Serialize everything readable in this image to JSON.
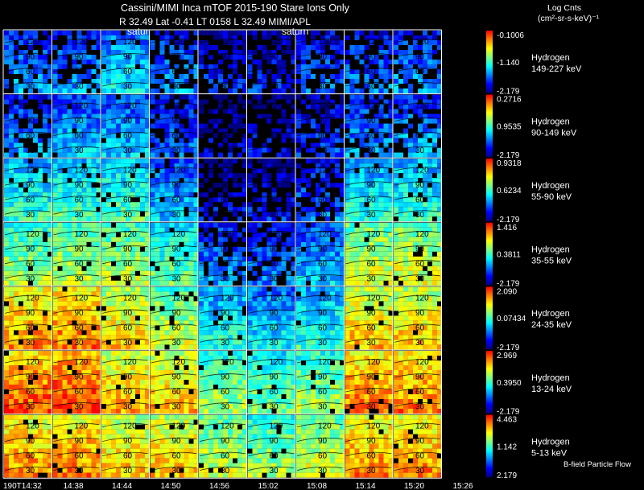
{
  "header": {
    "title": "Cassini/MIMI Inca mTOF  2015-190   Stare   Ions Only",
    "subtitle": "R        32.49 Lat -0.41 LT 0158 L        32.49  MIMI/APL",
    "planet_label": "satur",
    "planet_label_2": "saturn"
  },
  "colorbar": {
    "title": "Log Cnts",
    "units": "(cm²-sr-s-keV)⁻¹",
    "colors": [
      "#000080",
      "#0000ff",
      "#0080ff",
      "#00ffff",
      "#80ff80",
      "#ffff00",
      "#ff8000",
      "#ff0000"
    ]
  },
  "footer": {
    "note": "B-field Particle Flow"
  },
  "chart_data": {
    "type": "heatmap",
    "time_labels": [
      "190T14:32",
      "14:38",
      "14:44",
      "14:50",
      "14:56",
      "15:02",
      "15:08",
      "15:14",
      "15:20",
      "15:26"
    ],
    "elevation_ticks": [
      "30",
      "60",
      "90",
      "120"
    ],
    "rows": [
      {
        "species": "Hydrogen",
        "energy": "149-227 keV",
        "max": "-0.1006",
        "mid": "-1.140",
        "min": "-2.179",
        "intensity": [
          0.25,
          0.25,
          0.35,
          0.25,
          0.12,
          0.12,
          0.2,
          0.22,
          0.25
        ]
      },
      {
        "species": "Hydrogen",
        "energy": "90-149 keV",
        "max": "0.2716",
        "mid": "0.9535",
        "min": "-2.179",
        "intensity": [
          0.25,
          0.3,
          0.3,
          0.2,
          0.05,
          0.08,
          0.15,
          0.25,
          0.28
        ]
      },
      {
        "species": "Hydrogen",
        "energy": "55-90 keV",
        "max": "0.9318",
        "mid": "0.6234",
        "min": "-2.179",
        "intensity": [
          0.42,
          0.45,
          0.45,
          0.3,
          0.08,
          0.1,
          0.2,
          0.4,
          0.42
        ]
      },
      {
        "species": "Hydrogen",
        "energy": "35-55 keV",
        "max": "1.416",
        "mid": "0.3811",
        "min": "-2.179",
        "intensity": [
          0.55,
          0.58,
          0.58,
          0.48,
          0.25,
          0.22,
          0.3,
          0.62,
          0.62
        ]
      },
      {
        "species": "Hydrogen",
        "energy": "24-35 keV",
        "max": "2.090",
        "mid": "0.07434",
        "min": "-2.179",
        "intensity": [
          0.78,
          0.8,
          0.7,
          0.6,
          0.4,
          0.35,
          0.42,
          0.72,
          0.72
        ]
      },
      {
        "species": "Hydrogen",
        "energy": "13-24 keV",
        "max": "2.969",
        "mid": "0.3950",
        "min": "-2.179",
        "intensity": [
          0.85,
          0.88,
          0.75,
          0.72,
          0.55,
          0.5,
          0.55,
          0.8,
          0.8
        ]
      },
      {
        "species": "Hydrogen",
        "energy": "5-13 keV",
        "max": "4.463",
        "mid": "1.142",
        "min": "2.179",
        "intensity": [
          0.78,
          0.8,
          0.72,
          0.72,
          0.6,
          0.55,
          0.62,
          0.78,
          0.78
        ]
      }
    ]
  }
}
